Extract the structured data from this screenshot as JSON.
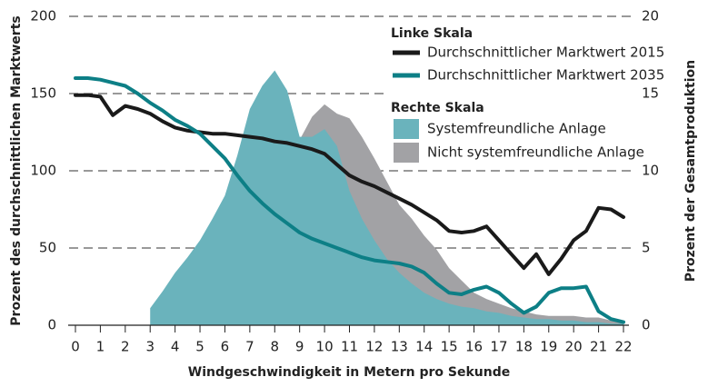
{
  "chart_data": {
    "type": "line",
    "xlabel": "Windgeschwindigkeit in Metern pro Sekunde",
    "ylabel": "Prozent des durchschnittlichen Marktwerts",
    "y2label": "Prozent der Gesamtproduktion",
    "legend_titles": {
      "left": "Linke Skala",
      "right": "Rechte Skala"
    },
    "x": [
      0,
      0.5,
      1,
      1.5,
      2,
      2.5,
      3,
      3.5,
      4,
      4.5,
      5,
      5.5,
      6,
      6.5,
      7,
      7.5,
      8,
      8.5,
      9,
      9.5,
      10,
      10.5,
      11,
      11.5,
      12,
      12.5,
      13,
      13.5,
      14,
      14.5,
      15,
      15.5,
      16,
      16.5,
      17,
      17.5,
      18,
      18.5,
      19,
      19.5,
      20,
      20.5,
      21,
      21.5,
      22
    ],
    "xlim": [
      0,
      22
    ],
    "xticks": [
      0,
      1,
      2,
      3,
      4,
      5,
      6,
      7,
      8,
      9,
      10,
      11,
      12,
      13,
      14,
      15,
      16,
      17,
      18,
      19,
      20,
      21,
      22
    ],
    "ylim": [
      0,
      200
    ],
    "yticks": [
      0,
      50,
      100,
      150,
      200
    ],
    "y2lim": [
      0,
      20
    ],
    "y2ticks": [
      0,
      5,
      10,
      15,
      20
    ],
    "grid": true,
    "series": [
      {
        "name": "Nicht systemfreundliche Anlage",
        "type": "area",
        "axis": "y2",
        "color": "#a2a2a5",
        "values": [
          null,
          null,
          null,
          null,
          null,
          null,
          null,
          null,
          null,
          null,
          null,
          null,
          null,
          null,
          null,
          null,
          null,
          null,
          12,
          13.5,
          14.3,
          13.7,
          13.4,
          12.2,
          10.8,
          9.3,
          7.8,
          6.9,
          5.8,
          4.9,
          3.7,
          2.9,
          2.1,
          1.7,
          1.4,
          1.1,
          0.9,
          0.7,
          0.6,
          0.6,
          0.6,
          0.5,
          0.5,
          0.3,
          0.2
        ]
      },
      {
        "name": "Systemfreundliche Anlage",
        "type": "area",
        "axis": "y2",
        "color": "#6ab3bc",
        "values": [
          null,
          null,
          null,
          null,
          null,
          null,
          1.1,
          2.2,
          3.4,
          4.4,
          5.5,
          6.9,
          8.4,
          11,
          14,
          15.5,
          16.5,
          15.2,
          12.2,
          12.2,
          12.7,
          11.6,
          8.7,
          6.9,
          5.5,
          4.3,
          3.4,
          2.7,
          2.1,
          1.7,
          1.4,
          1.2,
          1.1,
          0.9,
          0.8,
          0.6,
          0.5,
          0.4,
          0.4,
          0.3,
          0.3,
          0.2,
          0.2,
          0.1,
          0.1
        ]
      },
      {
        "name": "Durchschnittlicher Marktwert 2015",
        "type": "line",
        "axis": "y",
        "color": "#1a1a1a",
        "values": [
          149,
          149,
          148,
          136,
          142,
          140,
          137,
          132,
          128,
          126,
          125,
          124,
          124,
          123,
          122,
          121,
          119,
          118,
          116,
          114,
          111,
          104,
          97,
          93,
          90,
          86,
          82,
          78,
          73,
          68,
          61,
          60,
          61,
          64,
          55,
          46,
          37,
          46,
          33,
          43,
          55,
          61,
          76,
          75,
          70
        ]
      },
      {
        "name": "Durchschnittlicher Marktwert 2035",
        "type": "line",
        "axis": "y",
        "color": "#0d7f86",
        "values": [
          160,
          160,
          159,
          157,
          155,
          150,
          144,
          139,
          133,
          129,
          124,
          116,
          108,
          97,
          87,
          79,
          72,
          66,
          60,
          56,
          53,
          50,
          47,
          44,
          42,
          41,
          40,
          38,
          34,
          27,
          21,
          20,
          23,
          25,
          21,
          14,
          8,
          12,
          21,
          24,
          24,
          25,
          9,
          4,
          2
        ]
      }
    ]
  }
}
